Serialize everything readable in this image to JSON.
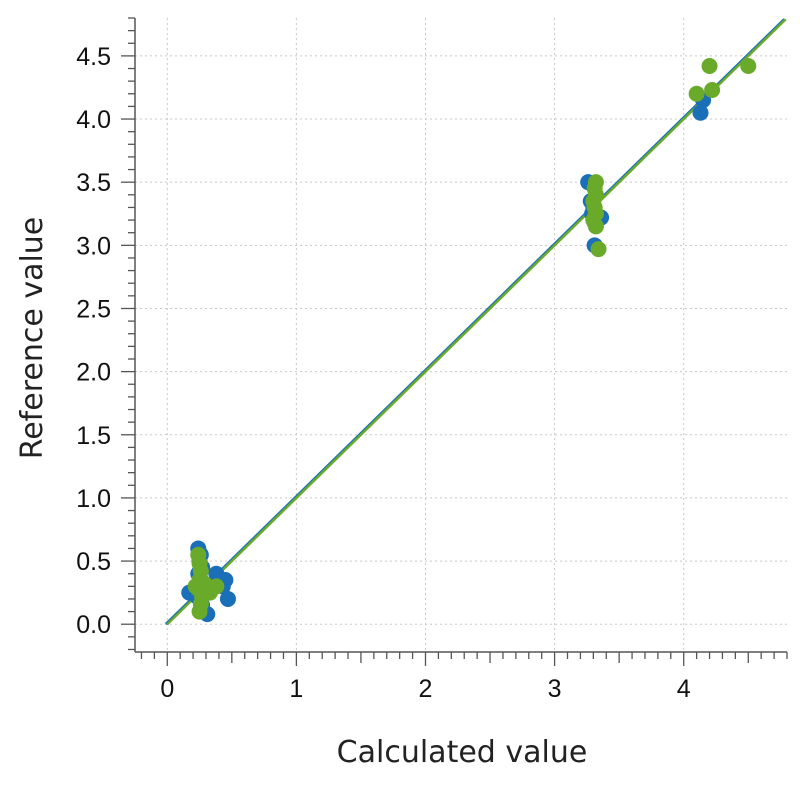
{
  "chart_data": {
    "type": "scatter",
    "title": "",
    "xlabel": "Calculated value",
    "ylabel": "Reference value",
    "xlim": [
      -0.25,
      4.8
    ],
    "ylim": [
      -0.22,
      4.8
    ],
    "x_ticks": [
      0,
      1,
      2,
      3,
      4
    ],
    "x_tick_labels": [
      "0",
      "1",
      "2",
      "3",
      "4"
    ],
    "y_ticks": [
      0.0,
      0.5,
      1.0,
      1.5,
      2.0,
      2.5,
      3.0,
      3.5,
      4.0,
      4.5
    ],
    "y_tick_labels": [
      "0.0",
      "0.5",
      "1.0",
      "1.5",
      "2.0",
      "2.5",
      "3.0",
      "3.5",
      "4.0",
      "4.5"
    ],
    "grid": true,
    "legend": "none",
    "colors": {
      "blue": "#1a6fb8",
      "green": "#6aaa2a"
    },
    "series": [
      {
        "color": "#1a6fb8",
        "points": [
          [
            0.24,
            0.6
          ],
          [
            0.26,
            0.55
          ],
          [
            0.25,
            0.5
          ],
          [
            0.27,
            0.45
          ],
          [
            0.24,
            0.4
          ],
          [
            0.26,
            0.35
          ],
          [
            0.29,
            0.3
          ],
          [
            0.38,
            0.4
          ],
          [
            0.45,
            0.35
          ],
          [
            0.43,
            0.3
          ],
          [
            0.17,
            0.25
          ],
          [
            0.23,
            0.22
          ],
          [
            0.27,
            0.15
          ],
          [
            0.31,
            0.08
          ],
          [
            0.47,
            0.2
          ],
          [
            3.26,
            3.5
          ],
          [
            3.28,
            3.35
          ],
          [
            3.3,
            3.3
          ],
          [
            3.29,
            3.25
          ],
          [
            3.31,
            3.18
          ],
          [
            3.36,
            3.22
          ],
          [
            3.31,
            3.0
          ],
          [
            4.13,
            4.05
          ],
          [
            4.15,
            4.15
          ]
        ],
        "fit": [
          [
            -0.01,
            0.0
          ],
          [
            4.78,
            4.79
          ]
        ]
      },
      {
        "color": "#6aaa2a",
        "points": [
          [
            0.24,
            0.55
          ],
          [
            0.25,
            0.48
          ],
          [
            0.26,
            0.42
          ],
          [
            0.25,
            0.35
          ],
          [
            0.24,
            0.28
          ],
          [
            0.27,
            0.22
          ],
          [
            0.26,
            0.16
          ],
          [
            0.25,
            0.1
          ],
          [
            0.29,
            0.32
          ],
          [
            0.33,
            0.25
          ],
          [
            0.38,
            0.3
          ],
          [
            0.22,
            0.3
          ],
          [
            3.32,
            3.5
          ],
          [
            3.31,
            3.45
          ],
          [
            3.32,
            3.4
          ],
          [
            3.3,
            3.35
          ],
          [
            3.31,
            3.3
          ],
          [
            3.32,
            3.25
          ],
          [
            3.3,
            3.2
          ],
          [
            3.32,
            3.15
          ],
          [
            3.34,
            2.97
          ],
          [
            4.1,
            4.2
          ],
          [
            4.2,
            4.42
          ],
          [
            4.22,
            4.23
          ],
          [
            4.5,
            4.42
          ]
        ],
        "fit": [
          [
            0.0,
            0.0
          ],
          [
            4.79,
            4.79
          ]
        ]
      }
    ]
  }
}
